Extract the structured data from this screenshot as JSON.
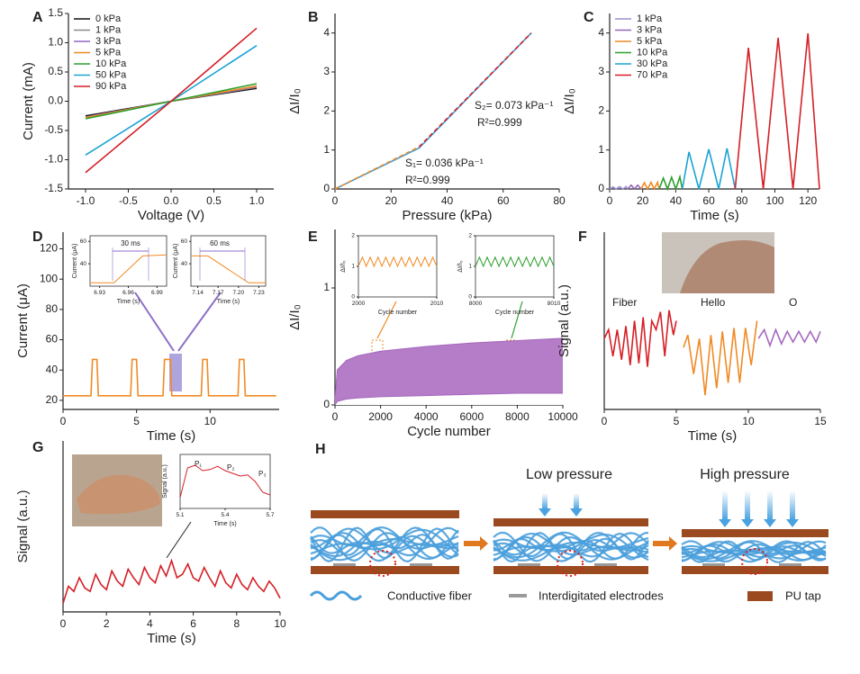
{
  "chart_data": [
    {
      "type": "line",
      "label": "A",
      "xlabel": "Voltage (V)",
      "ylabel": "Current (mA)",
      "legend": "upper left",
      "xlim": [
        -1.2,
        1.2
      ],
      "ylim": [
        -1.5,
        1.5
      ],
      "xticks": [
        {
          "value": -1,
          "label": "-1.0"
        },
        -0.5,
        {
          "value": 0,
          "label": "0.0"
        },
        0.5,
        {
          "value": 1,
          "label": "1.0"
        }
      ],
      "yticks": [
        -1.5,
        {
          "value": -1,
          "label": "-1.0"
        },
        -0.5,
        {
          "value": 0,
          "label": "0.0"
        },
        0.5,
        {
          "value": 1,
          "label": "1.0"
        },
        1.5
      ],
      "series": [
        {
          "name": "0 kPa",
          "color": "#111111",
          "x": [
            -1,
            0,
            1
          ],
          "values": [
            -0.25,
            0,
            0.22
          ]
        },
        {
          "name": "1 kPa",
          "color": "#8a8a8a",
          "x": [
            -1,
            0,
            1
          ],
          "values": [
            -0.27,
            0,
            0.24
          ]
        },
        {
          "name": "3 kPa",
          "color": "#9467bd",
          "x": [
            -1,
            0,
            1
          ],
          "values": [
            -0.27,
            0,
            0.25
          ]
        },
        {
          "name": "5 kPa",
          "color": "#f08a24",
          "x": [
            -1,
            0,
            1
          ],
          "values": [
            -0.28,
            0,
            0.26
          ]
        },
        {
          "name": "10 kPa",
          "color": "#2ca02c",
          "x": [
            -1,
            0,
            1
          ],
          "values": [
            -0.3,
            0,
            0.3
          ]
        },
        {
          "name": "50 kPa",
          "color": "#1aa3d4",
          "x": [
            -1,
            0,
            1
          ],
          "values": [
            -0.92,
            0,
            0.95
          ]
        },
        {
          "name": "90 kPa",
          "color": "#d42027",
          "x": [
            -1,
            0,
            1
          ],
          "values": [
            -1.22,
            0,
            1.25
          ]
        }
      ]
    },
    {
      "type": "line",
      "label": "B",
      "xlabel": "Pressure (kPa)",
      "ylabel": "ΔI/I₀",
      "xlim": [
        0,
        80
      ],
      "ylim": [
        0,
        4.5
      ],
      "xticks": [
        0,
        20,
        40,
        60,
        80
      ],
      "yticks": [
        0,
        1,
        2,
        3,
        4
      ],
      "series": [
        {
          "color": "#3a9ad9",
          "x": [
            0,
            30,
            70
          ],
          "values": [
            0,
            1.05,
            4
          ]
        },
        {
          "color": "#f08a24",
          "dashed": true,
          "x": [
            0,
            30
          ],
          "values": [
            0,
            1.08
          ]
        },
        {
          "color": "#d42027",
          "dashed": true,
          "x": [
            30,
            70
          ],
          "values": [
            1.08,
            4
          ]
        }
      ],
      "annotations": [
        {
          "text": "S₂= 0.073 kPa⁻¹",
          "color": "#d42027"
        },
        {
          "text": "R²=0.999",
          "color": "#d42027"
        },
        {
          "text": "S₁= 0.036 kPa⁻¹",
          "color": "#f08a24"
        },
        {
          "text": "R²=0.999",
          "color": "#f08a24"
        }
      ]
    },
    {
      "type": "line",
      "label": "C",
      "xlabel": "Time (s)",
      "ylabel": "ΔI/I₀",
      "legend": "upper left",
      "xlim": [
        0,
        127
      ],
      "ylim": [
        0,
        4.5
      ],
      "xticks": [
        0,
        20,
        40,
        60,
        80,
        100,
        120
      ],
      "yticks": [
        0,
        1,
        2,
        3,
        4
      ],
      "series": [
        {
          "name": "1 kPa",
          "color": "#9a8fd0",
          "x": [
            0,
            2,
            4,
            6,
            8,
            10,
            11
          ],
          "values": [
            0,
            0.05,
            0,
            0.06,
            0,
            0.06,
            0
          ]
        },
        {
          "name": "3 kPa",
          "color": "#9467bd",
          "x": [
            11,
            13,
            15,
            17,
            19
          ],
          "values": [
            0,
            0.1,
            0,
            0.1,
            0
          ]
        },
        {
          "name": "5 kPa",
          "color": "#f08a24",
          "x": [
            19,
            21,
            23,
            25,
            27,
            29,
            30
          ],
          "values": [
            0,
            0.16,
            0,
            0.17,
            0,
            0.17,
            0
          ]
        },
        {
          "name": "10 kPa",
          "color": "#2ca02c",
          "x": [
            30,
            32.5,
            35,
            37.5,
            40,
            42.5,
            44
          ],
          "values": [
            0,
            0.28,
            0,
            0.3,
            0,
            0.31,
            0
          ]
        },
        {
          "name": "30 kPa",
          "color": "#1aa3d4",
          "x": [
            44,
            48,
            54,
            60,
            66,
            71,
            76
          ],
          "values": [
            0,
            0.95,
            0,
            1.02,
            0,
            1.04,
            0
          ]
        },
        {
          "name": "70 kPa",
          "color": "#d42027",
          "x": [
            76,
            84,
            93,
            102,
            111,
            120,
            127
          ],
          "values": [
            0,
            3.62,
            0,
            3.88,
            0,
            3.99,
            0
          ]
        }
      ]
    },
    {
      "type": "line",
      "label": "D",
      "xlabel": "Time (s)",
      "ylabel": "Current (μA)",
      "xlim": [
        0,
        14.7
      ],
      "ylim": [
        14,
        131
      ],
      "xticks": [
        0,
        5,
        10
      ],
      "yticks": [
        20,
        40,
        60,
        80,
        100,
        120
      ],
      "series": [
        {
          "color": "#f08a24",
          "x": [
            0,
            1.9,
            2,
            2.3,
            2.4,
            4.6,
            4.7,
            5,
            5.1,
            6.8,
            6.9,
            7.3,
            7.4,
            9.4,
            9.5,
            9.8,
            9.9,
            11.9,
            12,
            12.3,
            12.4,
            14.5
          ],
          "values": [
            23,
            23,
            47,
            47,
            23,
            23,
            47,
            47,
            23,
            23,
            47,
            47,
            23,
            23,
            47,
            47,
            23,
            23,
            47,
            47,
            23,
            23
          ]
        }
      ]
    },
    {
      "type": "line",
      "xlabel": "Time (s)",
      "ylabel": "Current (μA)",
      "xlim": [
        6.92,
        7.0
      ],
      "ylim": [
        20,
        65
      ],
      "xticks": [
        6.93,
        6.96,
        6.99
      ],
      "yticks": [
        40,
        60
      ],
      "series": [
        {
          "color": "#f08a24",
          "x": [
            6.92,
            6.945,
            6.975,
            7.0
          ],
          "values": [
            23,
            23,
            47,
            48
          ]
        }
      ],
      "annotations": [
        {
          "text": "30 ms",
          "color": "#222222"
        }
      ]
    },
    {
      "type": "line",
      "xlabel": "Time (s)",
      "ylabel": "Current (μA)",
      "xlim": [
        7.13,
        7.24
      ],
      "ylim": [
        20,
        65
      ],
      "xticks": [
        7.14,
        7.17,
        {
          "value": 7.2,
          "label": "7.20"
        },
        7.23
      ],
      "yticks": [
        40,
        60
      ],
      "series": [
        {
          "color": "#f08a24",
          "x": [
            7.13,
            7.155,
            7.215,
            7.24
          ],
          "values": [
            47,
            47,
            23,
            23
          ]
        }
      ],
      "annotations": [
        {
          "text": "60 ms",
          "color": "#222222"
        }
      ]
    },
    {
      "type": "area",
      "label": "E",
      "xlabel": "Cycle number",
      "ylabel": "ΔI/I₀",
      "xlim": [
        0,
        10000
      ],
      "ylim": [
        0,
        1.5
      ],
      "xticks": [
        0,
        2000,
        4000,
        6000,
        8000,
        10000
      ],
      "yticks": [
        0,
        1
      ],
      "series": [
        {
          "color": "#a569bd",
          "fill": "#b57cc8",
          "x": [
            0,
            100,
            500,
            1000,
            2000,
            4000,
            6000,
            8000,
            10000
          ],
          "values": [
            0.05,
            0.3,
            0.38,
            0.42,
            0.46,
            0.5,
            0.53,
            0.55,
            0.57
          ]
        },
        {
          "color": "#a569bd",
          "fill": "#ffffff",
          "x": [
            0,
            100,
            500,
            1000,
            2000,
            4000,
            6000,
            8000,
            10000
          ],
          "values": [
            0,
            0.03,
            0.05,
            0.06,
            0.07,
            0.08,
            0.09,
            0.1,
            0.1
          ]
        }
      ]
    },
    {
      "type": "line",
      "xlabel": "Cycle number",
      "ylabel": "ΔI/I₀",
      "xlim": [
        2000,
        2010
      ],
      "ylim": [
        0,
        2
      ],
      "xticks": [
        2000,
        2010
      ],
      "yticks": [
        0,
        1,
        2
      ],
      "series": [
        {
          "color": "#f08a24",
          "x": [
            2000,
            2000.5,
            2001,
            2001.5,
            2002,
            2002.5,
            2003,
            2003.5,
            2004,
            2004.5,
            2005,
            2005.5,
            2006,
            2006.5,
            2007,
            2007.5,
            2008,
            2008.5,
            2009,
            2009.5,
            2010
          ],
          "values": [
            1.0,
            1.3,
            1.0,
            1.3,
            1.0,
            1.3,
            1.0,
            1.3,
            1.0,
            1.3,
            1.0,
            1.3,
            1.0,
            1.3,
            1.0,
            1.3,
            1.0,
            1.3,
            1.0,
            1.3,
            1.0
          ]
        }
      ]
    },
    {
      "type": "line",
      "xlabel": "Cycle number",
      "ylabel": "ΔI/I₀",
      "xlim": [
        8000,
        8010
      ],
      "ylim": [
        0,
        2
      ],
      "xticks": [
        8000,
        8010
      ],
      "yticks": [
        0,
        1,
        2
      ],
      "series": [
        {
          "color": "#2ca02c",
          "x": [
            8000,
            8000.5,
            8001,
            8001.5,
            8002,
            8002.5,
            8003,
            8003.5,
            8004,
            8004.5,
            8005,
            8005.5,
            8006,
            8006.5,
            8007,
            8007.5,
            8008,
            8008.5,
            8009,
            8009.5,
            8010
          ],
          "values": [
            1.0,
            1.3,
            1.0,
            1.3,
            1.0,
            1.3,
            1.0,
            1.3,
            1.0,
            1.3,
            1.0,
            1.3,
            1.0,
            1.3,
            1.0,
            1.3,
            1.0,
            1.3,
            1.0,
            1.3,
            1.0
          ]
        }
      ]
    },
    {
      "type": "line",
      "label": "F",
      "xlabel": "Time (s)",
      "ylabel": "Signal (a.u.)",
      "legend": "inline",
      "xlim": [
        0,
        15
      ],
      "ylim": [
        0,
        1
      ],
      "xticks": [
        0,
        5,
        10,
        15
      ],
      "series": [
        {
          "name": "Fiber",
          "color": "#d42027",
          "x": [
            0,
            0.3,
            0.6,
            0.9,
            1.2,
            1.5,
            1.8,
            2.1,
            2.4,
            2.7,
            3,
            3.3,
            3.6,
            3.9,
            4.2,
            4.5,
            4.8,
            5
          ],
          "values": [
            0.4,
            0.45,
            0.3,
            0.45,
            0.28,
            0.47,
            0.25,
            0.5,
            0.26,
            0.52,
            0.24,
            0.5,
            0.45,
            0.55,
            0.3,
            0.56,
            0.42,
            0.5
          ]
        },
        {
          "name": "Hello",
          "color": "#f08a24",
          "x": [
            5.5,
            5.8,
            6.2,
            6.6,
            7,
            7.4,
            7.8,
            8.2,
            8.6,
            9,
            9.4,
            9.8,
            10.2,
            10.6
          ],
          "values": [
            0.35,
            0.42,
            0.2,
            0.4,
            0.08,
            0.42,
            0.12,
            0.44,
            0.15,
            0.46,
            0.15,
            0.46,
            0.25,
            0.5
          ]
        },
        {
          "name": "O",
          "color": "#a569bd",
          "x": [
            10.7,
            11.1,
            11.5,
            11.9,
            12.3,
            12.7,
            13.1,
            13.5,
            13.9,
            14.3,
            14.7,
            15
          ],
          "values": [
            0.4,
            0.45,
            0.36,
            0.45,
            0.37,
            0.44,
            0.38,
            0.44,
            0.38,
            0.44,
            0.38,
            0.44
          ]
        }
      ]
    },
    {
      "type": "line",
      "label": "G",
      "xlabel": "Time (s)",
      "ylabel": "Signal (a.u.)",
      "xlim": [
        0,
        10
      ],
      "ylim": [
        0,
        1
      ],
      "xticks": [
        0,
        2,
        4,
        6,
        8,
        10
      ],
      "series": [
        {
          "color": "#d42027",
          "x": [
            0,
            0.25,
            0.5,
            0.75,
            1,
            1.25,
            1.5,
            1.75,
            2,
            2.25,
            2.5,
            2.75,
            3,
            3.25,
            3.5,
            3.75,
            4,
            4.25,
            4.5,
            4.75,
            5,
            5.25,
            5.5,
            5.75,
            6,
            6.25,
            6.5,
            6.75,
            7,
            7.25,
            7.5,
            7.75,
            8,
            8.25,
            8.5,
            8.75,
            9,
            9.25,
            9.5,
            9.75,
            10
          ],
          "values": [
            0.05,
            0.15,
            0.12,
            0.2,
            0.14,
            0.12,
            0.22,
            0.16,
            0.13,
            0.24,
            0.18,
            0.15,
            0.25,
            0.2,
            0.16,
            0.26,
            0.2,
            0.17,
            0.27,
            0.21,
            0.3,
            0.2,
            0.22,
            0.28,
            0.2,
            0.18,
            0.26,
            0.2,
            0.15,
            0.24,
            0.17,
            0.14,
            0.22,
            0.16,
            0.13,
            0.2,
            0.15,
            0.12,
            0.18,
            0.14,
            0.08
          ]
        }
      ]
    },
    {
      "type": "line",
      "xlabel": "Time (s)",
      "ylabel": "Signal (a.u.)",
      "xlim": [
        5.1,
        5.7
      ],
      "ylim": [
        0,
        1
      ],
      "xticks": [
        5.1,
        5.4,
        5.7
      ],
      "series": [
        {
          "color": "#d42027",
          "x": [
            5.1,
            5.15,
            5.2,
            5.25,
            5.3,
            5.35,
            5.4,
            5.45,
            5.5,
            5.55,
            5.6,
            5.65,
            5.7
          ],
          "values": [
            0.2,
            0.75,
            0.8,
            0.7,
            0.72,
            0.78,
            0.7,
            0.65,
            0.6,
            0.62,
            0.5,
            0.3,
            0.25
          ]
        }
      ],
      "annotations": [
        {
          "text": "P₁",
          "color": "#222222"
        },
        {
          "text": "P₂",
          "color": "#222222"
        },
        {
          "text": "P₃",
          "color": "#222222"
        }
      ]
    }
  ],
  "diagram": {
    "label": "H",
    "low": "Low pressure",
    "high": "High pressure",
    "legend": [
      "Conductive fiber",
      "Interdigitated electrodes",
      "PU tap"
    ]
  }
}
